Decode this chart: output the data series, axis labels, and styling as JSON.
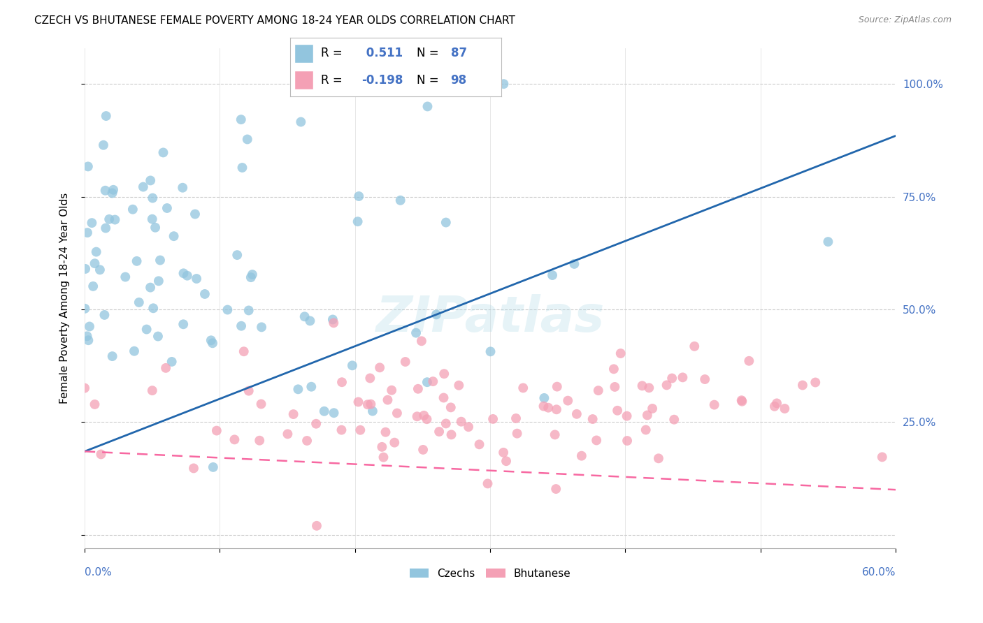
{
  "title": "CZECH VS BHUTANESE FEMALE POVERTY AMONG 18-24 YEAR OLDS CORRELATION CHART",
  "source": "Source: ZipAtlas.com",
  "ylabel": "Female Poverty Among 18-24 Year Olds",
  "xlim": [
    0.0,
    0.6
  ],
  "ylim": [
    -0.03,
    1.08
  ],
  "czech_color": "#92c5de",
  "bhutanese_color": "#f4a0b5",
  "czech_line_color": "#2166ac",
  "bhutanese_line_color": "#f768a1",
  "czech_R": 0.511,
  "czech_N": 87,
  "bhutanese_R": -0.198,
  "bhutanese_N": 98,
  "watermark": "ZIPatlas",
  "legend_czechs": "Czechs",
  "legend_bhutanese": "Bhutanese",
  "czech_line_x0": 0.0,
  "czech_line_y0": 0.185,
  "czech_line_x1": 0.6,
  "czech_line_y1": 0.885,
  "bhut_line_x0": 0.0,
  "bhut_line_y0": 0.185,
  "bhut_line_x1": 0.6,
  "bhut_line_y1": 0.1
}
